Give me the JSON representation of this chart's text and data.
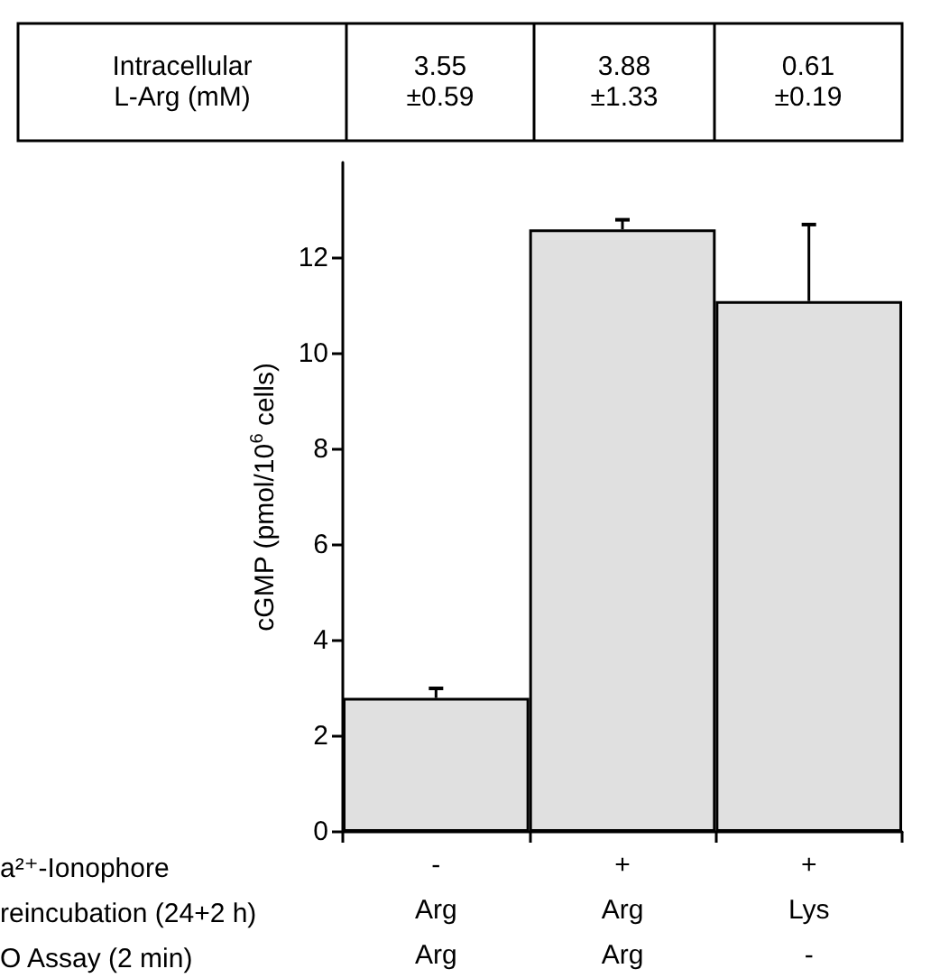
{
  "chart_data": {
    "type": "bar",
    "ylabel": "cGMP (pmol/10$^{6}$ cells)",
    "categories": [
      "-\nArg\nArg",
      "+\nArg\nArg",
      "+\nLys\n-"
    ],
    "values": [
      2.8,
      12.6,
      11.1
    ],
    "errors": [
      [
        2.8,
        3.0
      ],
      [
        12.6,
        12.8
      ],
      [
        11.1,
        12.7
      ]
    ],
    "color": "#e0e0e0",
    "ylim": [
      0,
      14
    ],
    "yticks": [
      0,
      2,
      4,
      6,
      8,
      10,
      12
    ],
    "grid": false,
    "annotations": [
      "Intracellular\nL-Arg (mM)",
      "3.55\n±0.59",
      "3.88\n±1.33",
      "0.61\n±0.19",
      "a²⁺-Ionophore",
      "reincubation (24+2 h)",
      "O Assay (2 min)"
    ]
  }
}
